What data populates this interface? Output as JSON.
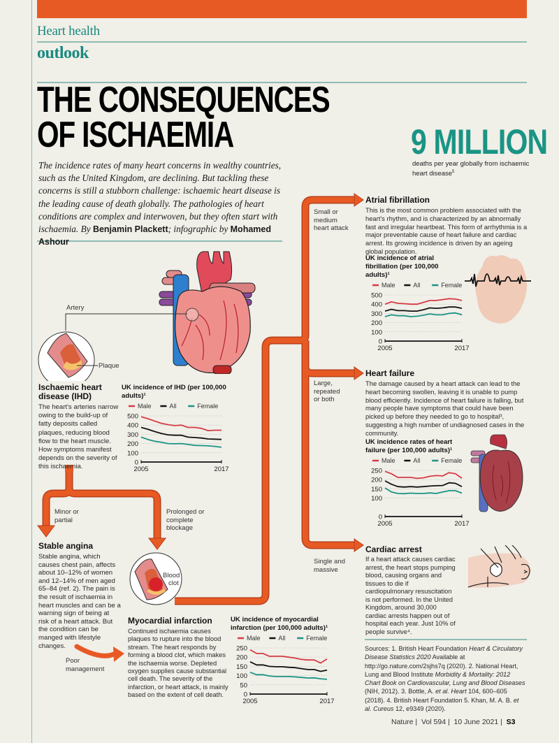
{
  "header": {
    "section": "Heart health",
    "subsection": "outlook",
    "title_line1": "THE CONSEQUENCES",
    "title_line2": "OF ISCHAEMIA",
    "deck": "The incidence rates of many heart concerns in wealthy countries, such as the United Kingdom, are declining. But tackling these concerns is still a stubborn challenge: ischaemic heart disease is the leading cause of death globally. The pathologies of heart conditions are complex and interwoven, but they often start with ischaemia.",
    "byline_prefix": "By",
    "author": "Benjamin Plackett",
    "infographic_prefix": "; infographic by",
    "illustrator": "Mohamed Ashour"
  },
  "stat": {
    "value": "9 MILLION",
    "caption": "deaths per year globally from ischaemic heart disease",
    "ref": "5"
  },
  "diagram_labels": {
    "artery": "Artery",
    "plaque": "Plaque",
    "blood_clot_1": "Blood",
    "blood_clot_2": "clot"
  },
  "branches": {
    "minor": [
      "Minor or",
      "partial"
    ],
    "prolonged": [
      "Prolonged or",
      "complete",
      "blockage"
    ],
    "poor": [
      "Poor",
      "management"
    ],
    "small": [
      "Small or",
      "medium",
      "heart attack"
    ],
    "large": [
      "Large,",
      "repeated",
      "or both"
    ],
    "single": [
      "Single and",
      "massive"
    ]
  },
  "sections": {
    "ihd": {
      "title_1": "Ischaemic heart",
      "title_2": "disease (IHD)",
      "body": "The heart's arteries narrow owing to the build-up of fatty deposits called plaques, reducing blood flow to the heart muscle. How symptoms manifest depends on the severity of this ischaemia."
    },
    "angina": {
      "title": "Stable angina",
      "body": "Stable angina, which causes chest pain, affects about 10–12% of women and 12–14% of men aged 65–84 (ref. 2). The pain is the result of ischaemia in heart muscles and can be a warning sign of being at risk of a heart attack. But the condition can be manged with lifestyle changes."
    },
    "mi": {
      "title": "Myocardial infarction",
      "body": "Continued ischaemia causes plaques to rupture into the blood stream. The heart responds by forming a blood clot, which makes the ischaemia worse. Depleted oxygen supplies cause substantial cell death. The severity of the infarction, or heart attack, is mainly based on the extent of cell death."
    },
    "af": {
      "title": "Atrial fibrillation",
      "body": "This is the most common problem associated with the heart's rhythm, and is characterized by an abnormally fast and irregular heartbeat. This form of arrhythmia is a major preventable cause of heart failure and cardiac arrest. Its growing incidence is driven by an ageing global population."
    },
    "hf": {
      "title": "Heart failure",
      "body": "The damage caused by a heart attack can lead to the heart becoming swollen, leaving it is unable to pump blood efficiently. Incidence of heart failure is falling, but many people have symptoms that could have been picked up before they needed to go to hospital³, suggesting a high number of undiagnosed cases in the community."
    },
    "ca": {
      "title": "Cardiac arrest",
      "body": "If a heart attack causes cardiac arrest, the heart stops pumping blood, causing organs and tissues to die if cardiopulmonary resuscitation is not performed. In the United Kingdom, around 30,000 cardiac arrests happen out of hospital each year. Just 10% of people survive⁴."
    }
  },
  "colors": {
    "orange": "#e85a24",
    "teal": "#1a9484",
    "male": "#d63b44",
    "all": "#111111",
    "female": "#1a9484"
  },
  "chart_data": [
    {
      "id": "ihd",
      "type": "line",
      "title": "UK incidence of IHD (per 100,000 adults)¹",
      "x": [
        2005,
        2006,
        2007,
        2008,
        2009,
        2010,
        2011,
        2012,
        2013,
        2014,
        2015,
        2016,
        2017
      ],
      "xticks": [
        "2005",
        "2017"
      ],
      "yticks": [
        0,
        100,
        200,
        300,
        400,
        500
      ],
      "ylim": [
        0,
        500
      ],
      "legend": [
        "Male",
        "All",
        "Female"
      ],
      "grid": true,
      "series": [
        {
          "name": "Male",
          "values": [
            490,
            470,
            445,
            420,
            405,
            395,
            400,
            375,
            375,
            365,
            340,
            345,
            345
          ]
        },
        {
          "name": "All",
          "values": [
            375,
            355,
            330,
            310,
            295,
            290,
            290,
            270,
            265,
            260,
            250,
            248,
            245
          ]
        },
        {
          "name": "Female",
          "values": [
            270,
            245,
            225,
            215,
            200,
            198,
            200,
            190,
            180,
            178,
            175,
            170,
            160
          ]
        }
      ]
    },
    {
      "id": "af",
      "type": "line",
      "title": "UK incidence of atrial fibrillation (per 100,000 adults)¹",
      "x": [
        2005,
        2006,
        2007,
        2008,
        2009,
        2010,
        2011,
        2012,
        2013,
        2014,
        2015,
        2016,
        2017
      ],
      "xticks": [
        "2005",
        "2017"
      ],
      "yticks": [
        0,
        100,
        200,
        300,
        400,
        500
      ],
      "ylim": [
        0,
        500
      ],
      "legend": [
        "Male",
        "All",
        "Female"
      ],
      "grid": true,
      "series": [
        {
          "name": "Male",
          "values": [
            400,
            425,
            410,
            405,
            400,
            400,
            420,
            440,
            440,
            450,
            460,
            455,
            440
          ]
        },
        {
          "name": "All",
          "values": [
            325,
            345,
            330,
            330,
            325,
            325,
            340,
            360,
            355,
            360,
            370,
            370,
            355
          ]
        },
        {
          "name": "Female",
          "values": [
            265,
            285,
            275,
            275,
            265,
            270,
            280,
            295,
            285,
            285,
            300,
            305,
            285
          ]
        }
      ]
    },
    {
      "id": "hf",
      "type": "line",
      "title": "UK incidence rates of heart failure (per 100,000 adults)¹",
      "x": [
        2005,
        2006,
        2007,
        2008,
        2009,
        2010,
        2011,
        2012,
        2013,
        2014,
        2015,
        2016,
        2017
      ],
      "xticks": [
        "2005",
        "2017"
      ],
      "yticks": [
        0,
        100,
        150,
        200,
        250
      ],
      "ylim": [
        0,
        250
      ],
      "legend": [
        "Male",
        "All",
        "Female"
      ],
      "grid": true,
      "series": [
        {
          "name": "Male",
          "values": [
            245,
            232,
            212,
            212,
            212,
            207,
            210,
            218,
            222,
            220,
            238,
            232,
            208
          ]
        },
        {
          "name": "All",
          "values": [
            193,
            175,
            162,
            160,
            162,
            160,
            162,
            165,
            167,
            168,
            183,
            180,
            162
          ]
        },
        {
          "name": "Female",
          "values": [
            155,
            133,
            125,
            124,
            127,
            125,
            125,
            128,
            125,
            133,
            140,
            140,
            127
          ]
        }
      ]
    },
    {
      "id": "mi",
      "type": "line",
      "title": "UK incidence of myocardial infarction (per 100,000 adults)¹",
      "x": [
        2005,
        2006,
        2007,
        2008,
        2009,
        2010,
        2011,
        2012,
        2013,
        2014,
        2015,
        2016,
        2017
      ],
      "xticks": [
        "2005",
        "2017"
      ],
      "yticks": [
        0,
        50,
        100,
        150,
        200,
        250
      ],
      "ylim": [
        0,
        250
      ],
      "legend": [
        "Male",
        "All",
        "Female"
      ],
      "grid": true,
      "series": [
        {
          "name": "Male",
          "values": [
            240,
            220,
            220,
            205,
            205,
            205,
            200,
            195,
            188,
            185,
            185,
            168,
            190
          ]
        },
        {
          "name": "All",
          "values": [
            175,
            158,
            158,
            150,
            148,
            148,
            145,
            143,
            138,
            133,
            133,
            123,
            130
          ]
        },
        {
          "name": "Female",
          "values": [
            118,
            105,
            105,
            98,
            95,
            95,
            95,
            93,
            90,
            87,
            88,
            83,
            80
          ]
        }
      ]
    }
  ],
  "sources": {
    "label": "Sources:",
    "items": [
      {
        "n": "1.",
        "text": "British Heart Foundation",
        "italic": "Heart & Circulatory Disease Statistics 2020",
        "rest": "Available at http://go.nature.com/2sjhs7q (2020)."
      },
      {
        "n": "2.",
        "text": "National Heart, Lung and Blood Institute",
        "italic": "Morbidity & Mortality: 2012 Chart Book on Cardiovascular, Lung and Blood Diseases",
        "rest": "(NIH, 2012)."
      },
      {
        "n": "3.",
        "text": "Bottle, A.",
        "italic": "et al. Heart",
        "rest": "104, 600–605 (2018)."
      },
      {
        "n": "4.",
        "text": "British Heart Foundation",
        "italic": "",
        "rest": ""
      },
      {
        "n": "5.",
        "text": "Khan, M. A. B.",
        "italic": "et al. Cureus",
        "rest": "12, e9349 (2020)."
      }
    ]
  },
  "footer": {
    "journal": "Nature",
    "volume": "Vol 594",
    "date": "10 June 2021",
    "page": "S3"
  }
}
